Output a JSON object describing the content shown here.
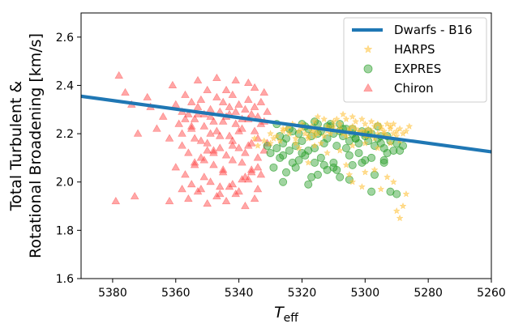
{
  "chart_data": {
    "type": "scatter",
    "xlabel": "T",
    "xlabel_sub": "eff",
    "ylabel_line1": "Total Turbulent &",
    "ylabel_line2": "Rotational Broadening [km/s]",
    "xlim": [
      5390,
      5260
    ],
    "ylim": [
      1.6,
      2.7
    ],
    "x_ticks": [
      5380,
      5360,
      5340,
      5320,
      5300,
      5280,
      5260
    ],
    "y_ticks": [
      1.6,
      1.8,
      2.0,
      2.2,
      2.4,
      2.6
    ],
    "x_tick_labels": [
      "5380",
      "5360",
      "5340",
      "5320",
      "5300",
      "5280",
      "5260"
    ],
    "y_tick_labels": [
      "1.6",
      "1.8",
      "2.0",
      "2.2",
      "2.4",
      "2.6"
    ],
    "grid": false,
    "legend_position": "top-right",
    "legend": [
      "Dwarfs - B16",
      "HARPS",
      "EXPRES",
      "Chiron"
    ],
    "line": {
      "name": "Dwarfs - B16",
      "color": "#1f77b4",
      "x": [
        5390,
        5260
      ],
      "y": [
        2.355,
        2.125
      ]
    },
    "series": [
      {
        "name": "HARPS",
        "marker": "star",
        "color": "#ffbf33",
        "x": [
          5330,
          5328,
          5326,
          5325,
          5324,
          5322,
          5321,
          5320,
          5319,
          5318,
          5317,
          5316,
          5315,
          5314,
          5313,
          5312,
          5311,
          5310,
          5309,
          5308,
          5307,
          5306,
          5305,
          5304,
          5303,
          5302,
          5301,
          5300,
          5299,
          5298,
          5297,
          5296,
          5295,
          5294,
          5293,
          5292,
          5291,
          5290,
          5289,
          5288,
          5287,
          5327,
          5323,
          5316,
          5312,
          5308,
          5305,
          5300,
          5296,
          5292,
          5318,
          5314,
          5310,
          5306,
          5302,
          5298,
          5294,
          5290,
          5286,
          5320,
          5316,
          5309,
          5303,
          5297,
          5291,
          5322,
          5315,
          5311,
          5307,
          5301,
          5295,
          5289,
          5329,
          5324,
          5313,
          5304,
          5299,
          5293,
          5326,
          5317,
          5318,
          5306,
          5305,
          5304,
          5301,
          5300,
          5297,
          5295,
          5293,
          5291,
          5290,
          5289,
          5288,
          5287,
          5321,
          5316,
          5312,
          5308,
          5304,
          5300,
          5296,
          5292,
          5335,
          5334,
          5332,
          5330,
          5300
        ],
        "y": [
          2.2,
          2.19,
          2.21,
          2.22,
          2.2,
          2.18,
          2.21,
          2.22,
          2.2,
          2.19,
          2.23,
          2.21,
          2.2,
          2.22,
          2.19,
          2.21,
          2.2,
          2.23,
          2.21,
          2.22,
          2.2,
          2.19,
          2.21,
          2.23,
          2.22,
          2.2,
          2.21,
          2.24,
          2.22,
          2.21,
          2.23,
          2.2,
          2.22,
          2.21,
          2.19,
          2.23,
          2.2,
          2.21,
          2.22,
          2.2,
          2.21,
          2.17,
          2.24,
          2.25,
          2.23,
          2.24,
          2.22,
          2.19,
          2.24,
          2.22,
          2.18,
          2.16,
          2.25,
          2.26,
          2.21,
          2.25,
          2.2,
          2.19,
          2.23,
          2.24,
          2.19,
          2.26,
          2.25,
          2.18,
          2.24,
          2.16,
          2.27,
          2.22,
          2.28,
          2.26,
          2.23,
          2.17,
          2.18,
          2.23,
          2.26,
          2.27,
          2.19,
          2.24,
          2.22,
          2.21,
          2.08,
          2.07,
          2.03,
          2.0,
          1.98,
          2.04,
          2.05,
          1.97,
          2.02,
          2.0,
          1.88,
          1.85,
          1.9,
          1.95,
          2.14,
          2.15,
          2.12,
          2.13,
          2.15,
          2.16,
          2.14,
          2.16,
          2.18,
          2.15,
          2.17,
          2.16,
          2.21
        ]
      },
      {
        "name": "EXPRES",
        "marker": "circle",
        "color": "#2ca02c",
        "x": [
          5330,
          5328,
          5327,
          5326,
          5325,
          5324,
          5323,
          5322,
          5321,
          5320,
          5319,
          5318,
          5317,
          5316,
          5315,
          5314,
          5313,
          5312,
          5311,
          5310,
          5309,
          5308,
          5307,
          5306,
          5305,
          5304,
          5303,
          5302,
          5301,
          5300,
          5299,
          5298,
          5297,
          5296,
          5295,
          5294,
          5293,
          5292,
          5291,
          5290,
          5329,
          5325,
          5321,
          5317,
          5313,
          5309,
          5305,
          5301,
          5297,
          5293,
          5327,
          5323,
          5319,
          5315,
          5311,
          5307,
          5303,
          5299,
          5295,
          5331,
          5326,
          5322,
          5318,
          5314,
          5310,
          5306,
          5302,
          5298,
          5294,
          5328,
          5324,
          5320,
          5316,
          5312,
          5308,
          5304,
          5300,
          5296,
          5326,
          5318,
          5315,
          5310,
          5305,
          5300,
          5298,
          5294,
          5292,
          5290,
          5289,
          5288,
          5320,
          5316,
          5312,
          5308,
          5304
        ],
        "y": [
          2.12,
          2.14,
          2.1,
          2.16,
          2.18,
          2.13,
          2.08,
          2.15,
          2.2,
          2.17,
          2.11,
          2.22,
          2.19,
          2.14,
          2.24,
          2.21,
          2.16,
          2.18,
          2.23,
          2.2,
          2.15,
          2.21,
          2.19,
          2.22,
          2.17,
          2.2,
          2.18,
          2.16,
          2.21,
          2.19,
          2.17,
          2.2,
          2.15,
          2.18,
          2.16,
          2.14,
          2.19,
          2.17,
          2.13,
          2.16,
          2.06,
          2.04,
          2.09,
          2.02,
          2.07,
          2.05,
          2.11,
          2.08,
          2.03,
          2.12,
          2.19,
          2.21,
          2.23,
          2.2,
          2.24,
          2.22,
          2.18,
          2.21,
          2.19,
          2.15,
          2.11,
          2.06,
          2.13,
          2.1,
          2.08,
          2.14,
          2.12,
          2.1,
          2.09,
          2.24,
          2.22,
          2.24,
          2.25,
          2.23,
          2.24,
          2.22,
          2.2,
          2.23,
          2.0,
          1.99,
          2.03,
          2.06,
          2.01,
          2.09,
          1.96,
          2.08,
          1.96,
          1.95,
          2.13,
          2.15,
          2.12,
          2.08,
          2.05,
          2.02,
          2.07
        ]
      },
      {
        "name": "Chiron",
        "marker": "triangle",
        "color": "#ff3b3b",
        "x": [
          5378,
          5374,
          5372,
          5368,
          5364,
          5362,
          5360,
          5358,
          5357,
          5356,
          5355,
          5354,
          5353,
          5352,
          5351,
          5350,
          5349,
          5348,
          5347,
          5346,
          5345,
          5344,
          5343,
          5342,
          5341,
          5340,
          5339,
          5338,
          5337,
          5336,
          5335,
          5334,
          5333,
          5332,
          5331,
          5359,
          5357,
          5355,
          5353,
          5351,
          5349,
          5347,
          5345,
          5343,
          5341,
          5339,
          5337,
          5335,
          5333,
          5358,
          5356,
          5354,
          5352,
          5350,
          5348,
          5346,
          5344,
          5342,
          5340,
          5338,
          5336,
          5334,
          5332,
          5360,
          5357,
          5354,
          5351,
          5348,
          5345,
          5342,
          5339,
          5336,
          5333,
          5355,
          5352,
          5349,
          5346,
          5343,
          5340,
          5337,
          5334,
          5356,
          5353,
          5350,
          5347,
          5344,
          5341,
          5338,
          5335,
          5351,
          5348,
          5345,
          5342,
          5339,
          5336,
          5379,
          5373,
          5366,
          5362,
          5358,
          5354,
          5350,
          5346,
          5342,
          5338,
          5334,
          5358,
          5355,
          5352,
          5349,
          5346,
          5343,
          5340,
          5337,
          5334,
          5331,
          5376,
          5369,
          5361,
          5353,
          5347,
          5344,
          5341,
          5337,
          5335,
          5332
        ],
        "y": [
          2.44,
          2.32,
          2.2,
          2.31,
          2.27,
          2.18,
          2.32,
          2.29,
          2.36,
          2.28,
          2.33,
          2.26,
          2.31,
          2.34,
          2.28,
          2.38,
          2.3,
          2.25,
          2.35,
          2.29,
          2.33,
          2.27,
          2.31,
          2.36,
          2.29,
          2.32,
          2.26,
          2.3,
          2.34,
          2.28,
          2.31,
          2.27,
          2.33,
          2.25,
          2.29,
          2.24,
          2.26,
          2.22,
          2.28,
          2.23,
          2.27,
          2.21,
          2.25,
          2.28,
          2.24,
          2.22,
          2.26,
          2.21,
          2.24,
          2.15,
          2.12,
          2.18,
          2.1,
          2.16,
          2.13,
          2.19,
          2.11,
          2.17,
          2.14,
          2.12,
          2.16,
          2.1,
          2.13,
          2.06,
          2.03,
          2.08,
          2.02,
          2.07,
          2.04,
          2.09,
          2.01,
          2.05,
          2.03,
          1.99,
          1.97,
          2.0,
          1.95,
          1.98,
          1.96,
          2.01,
          1.97,
          1.93,
          1.96,
          1.91,
          1.94,
          1.92,
          1.95,
          1.9,
          1.93,
          2.09,
          2.12,
          2.05,
          2.15,
          2.08,
          2.04,
          1.92,
          1.94,
          2.22,
          1.92,
          1.97,
          2.07,
          2.13,
          1.98,
          1.99,
          2.02,
          2.06,
          2.2,
          2.23,
          2.17,
          2.2,
          2.14,
          2.19,
          2.21,
          2.15,
          2.18,
          2.16,
          2.37,
          2.35,
          2.4,
          2.42,
          2.43,
          2.38,
          2.42,
          2.41,
          2.39,
          2.37
        ]
      }
    ]
  }
}
